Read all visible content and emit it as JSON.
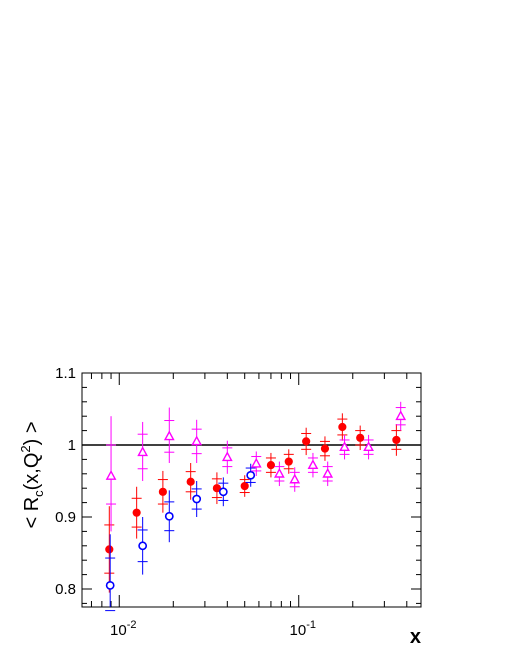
{
  "chart_data": {
    "type": "scatter",
    "xscale": "log",
    "xlim": [
      0.0062,
      0.48
    ],
    "ylim": [
      0.775,
      1.1
    ],
    "grid": false,
    "reference_line": 1.0,
    "xlabel": "x",
    "ylabel": "< R_c(x,Q^2) >",
    "ylabel_parts": {
      "open": "< R",
      "sub": "c",
      "mid": "(x,Q",
      "sup": "2",
      "close": ") >"
    },
    "y_ticks": [
      {
        "value": 0.8,
        "label": "0.8"
      },
      {
        "value": 0.9,
        "label": "0.9"
      },
      {
        "value": 1.0,
        "label": "1"
      },
      {
        "value": 1.1,
        "label": "1.1"
      }
    ],
    "x_ticks": [
      {
        "value": 0.01,
        "base": "10",
        "exp": "-2"
      },
      {
        "value": 0.1,
        "base": "10",
        "exp": "-1"
      }
    ],
    "series": [
      {
        "marker": "filled-circle",
        "color": "#ff0000",
        "points": [
          {
            "x": 0.0088,
            "y": 0.855,
            "inner": [
              0.822,
              0.889
            ],
            "outer": [
              0.795,
              0.915
            ]
          },
          {
            "x": 0.0125,
            "y": 0.906,
            "inner": [
              0.886,
              0.926
            ],
            "outer": [
              0.87,
              0.942
            ]
          },
          {
            "x": 0.0175,
            "y": 0.935,
            "inner": [
              0.918,
              0.952
            ],
            "outer": [
              0.906,
              0.964
            ]
          },
          {
            "x": 0.025,
            "y": 0.949,
            "inner": [
              0.935,
              0.963
            ],
            "outer": [
              0.924,
              0.975
            ]
          },
          {
            "x": 0.035,
            "y": 0.94,
            "inner": [
              0.927,
              0.953
            ],
            "outer": [
              0.918,
              0.962
            ]
          },
          {
            "x": 0.05,
            "y": 0.943,
            "inner": [
              0.934,
              0.952
            ],
            "outer": [
              0.928,
              0.958
            ]
          },
          {
            "x": 0.07,
            "y": 0.972,
            "inner": [
              0.962,
              0.982
            ],
            "outer": [
              0.955,
              0.989
            ]
          },
          {
            "x": 0.088,
            "y": 0.977,
            "inner": [
              0.967,
              0.987
            ],
            "outer": [
              0.96,
              0.994
            ]
          },
          {
            "x": 0.11,
            "y": 1.005,
            "inner": [
              0.994,
              1.016
            ],
            "outer": [
              0.986,
              1.024
            ]
          },
          {
            "x": 0.14,
            "y": 0.995,
            "inner": [
              0.985,
              1.005
            ],
            "outer": [
              0.978,
              1.012
            ]
          },
          {
            "x": 0.175,
            "y": 1.025,
            "inner": [
              1.014,
              1.036
            ],
            "outer": [
              1.006,
              1.044
            ]
          },
          {
            "x": 0.22,
            "y": 1.01,
            "inner": [
              1.0,
              1.02
            ],
            "outer": [
              0.993,
              1.027
            ]
          },
          {
            "x": 0.35,
            "y": 1.007,
            "inner": [
              0.994,
              1.02
            ],
            "outer": [
              0.985,
              1.029
            ]
          }
        ]
      },
      {
        "marker": "open-circle",
        "color": "#0000ff",
        "points": [
          {
            "x": 0.0089,
            "y": 0.805,
            "inner": [
              0.77,
              0.843
            ],
            "outer": [
              0.745,
              0.876
            ]
          },
          {
            "x": 0.0135,
            "y": 0.86,
            "inner": [
              0.838,
              0.882
            ],
            "outer": [
              0.82,
              0.9
            ]
          },
          {
            "x": 0.019,
            "y": 0.901,
            "inner": [
              0.881,
              0.921
            ],
            "outer": [
              0.865,
              0.937
            ]
          },
          {
            "x": 0.027,
            "y": 0.925,
            "inner": [
              0.911,
              0.939
            ],
            "outer": [
              0.9,
              0.95
            ]
          },
          {
            "x": 0.038,
            "y": 0.935,
            "inner": [
              0.923,
              0.947
            ],
            "outer": [
              0.915,
              0.955
            ]
          },
          {
            "x": 0.054,
            "y": 0.958,
            "inner": [
              0.948,
              0.968
            ],
            "outer": [
              0.942,
              0.974
            ]
          }
        ]
      },
      {
        "marker": "open-triangle",
        "color": "#ff00ff",
        "points": [
          {
            "x": 0.009,
            "y": 0.957,
            "inner": [
              0.918,
              1.0
            ],
            "outer": [
              0.88,
              1.04
            ]
          },
          {
            "x": 0.0135,
            "y": 0.99,
            "inner": [
              0.967,
              1.015
            ],
            "outer": [
              0.95,
              1.032
            ]
          },
          {
            "x": 0.019,
            "y": 1.012,
            "inner": [
              0.99,
              1.034
            ],
            "outer": [
              0.975,
              1.052
            ]
          },
          {
            "x": 0.027,
            "y": 1.005,
            "inner": [
              0.988,
              1.022
            ],
            "outer": [
              0.975,
              1.035
            ]
          },
          {
            "x": 0.04,
            "y": 0.983,
            "inner": [
              0.97,
              0.996
            ],
            "outer": [
              0.96,
              1.006
            ]
          },
          {
            "x": 0.058,
            "y": 0.974,
            "inner": [
              0.964,
              0.984
            ],
            "outer": [
              0.957,
              0.991
            ]
          },
          {
            "x": 0.078,
            "y": 0.96,
            "inner": [
              0.95,
              0.97
            ],
            "outer": [
              0.943,
              0.977
            ]
          },
          {
            "x": 0.095,
            "y": 0.952,
            "inner": [
              0.942,
              0.962
            ],
            "outer": [
              0.935,
              0.969
            ]
          },
          {
            "x": 0.12,
            "y": 0.972,
            "inner": [
              0.962,
              0.982
            ],
            "outer": [
              0.955,
              0.989
            ]
          },
          {
            "x": 0.145,
            "y": 0.96,
            "inner": [
              0.95,
              0.97
            ],
            "outer": [
              0.943,
              0.977
            ]
          },
          {
            "x": 0.18,
            "y": 0.997,
            "inner": [
              0.987,
              1.007
            ],
            "outer": [
              0.98,
              1.014
            ]
          },
          {
            "x": 0.245,
            "y": 0.997,
            "inner": [
              0.987,
              1.007
            ],
            "outer": [
              0.98,
              1.014
            ]
          },
          {
            "x": 0.37,
            "y": 1.04,
            "inner": [
              1.028,
              1.052
            ],
            "outer": [
              1.02,
              1.06
            ]
          }
        ]
      }
    ]
  }
}
